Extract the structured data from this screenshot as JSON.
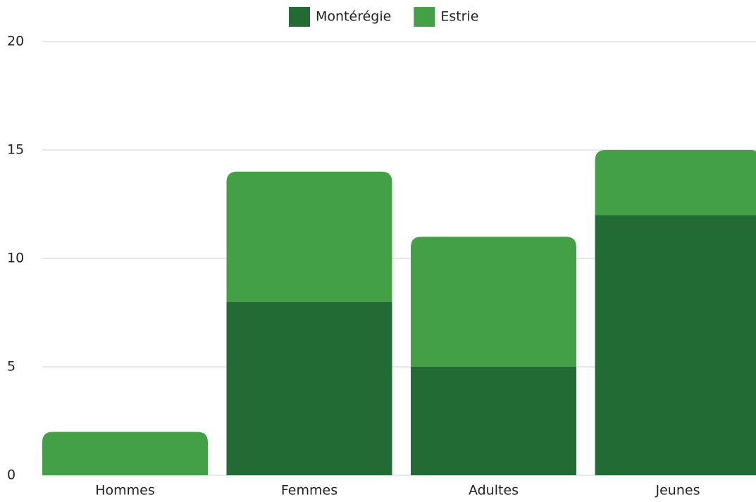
{
  "chart_data": {
    "type": "stacked_bar",
    "categories": [
      "Hommes",
      "Femmes",
      "Adultes",
      "Jeunes"
    ],
    "series": [
      {
        "name": "Montérégie",
        "color": "#236b34",
        "values": [
          0,
          8,
          5,
          12
        ]
      },
      {
        "name": "Estrie",
        "color": "#43a047",
        "values": [
          2,
          6,
          6,
          3
        ]
      }
    ],
    "ylim": [
      0,
      20
    ],
    "yticks": [
      0,
      5,
      10,
      15,
      20
    ],
    "grid": true,
    "legend": "top"
  }
}
